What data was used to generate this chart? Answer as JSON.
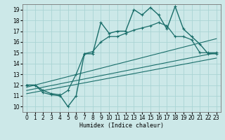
{
  "title": "",
  "xlabel": "Humidex (Indice chaleur)",
  "ylabel": "",
  "xlim": [
    -0.5,
    23.5
  ],
  "ylim": [
    9.5,
    19.5
  ],
  "xticks": [
    0,
    1,
    2,
    3,
    4,
    5,
    6,
    7,
    8,
    9,
    10,
    11,
    12,
    13,
    14,
    15,
    16,
    17,
    18,
    19,
    20,
    21,
    22,
    23
  ],
  "yticks": [
    10,
    11,
    12,
    13,
    14,
    15,
    16,
    17,
    18,
    19
  ],
  "bg_color": "#cce8e8",
  "line_color": "#1a6e6a",
  "grid_color": "#aad4d4",
  "line_main": {
    "x": [
      0,
      1,
      2,
      3,
      4,
      5,
      6,
      7,
      8,
      9,
      10,
      11,
      12,
      13,
      14,
      15,
      16,
      17,
      18,
      19,
      20,
      21,
      22,
      23
    ],
    "y": [
      12,
      12,
      11.5,
      11.2,
      11.1,
      10.0,
      11.0,
      14.9,
      14.9,
      17.8,
      16.8,
      17.0,
      17.0,
      19.0,
      18.5,
      19.2,
      18.5,
      17.2,
      19.3,
      17.2,
      16.5,
      15.8,
      14.9,
      14.9
    ]
  },
  "line_smooth": {
    "x": [
      0,
      1,
      2,
      3,
      4,
      5,
      6,
      7,
      8,
      9,
      10,
      11,
      12,
      13,
      14,
      15,
      16,
      17,
      18,
      19,
      20,
      21,
      22,
      23
    ],
    "y": [
      12,
      12,
      11.3,
      11.1,
      11.0,
      11.5,
      13.0,
      14.9,
      15.1,
      16.0,
      16.5,
      16.5,
      16.8,
      17.1,
      17.3,
      17.5,
      17.8,
      17.5,
      16.5,
      16.5,
      16.2,
      15.0,
      15.0,
      15.0
    ]
  },
  "linear_lines": [
    {
      "x0": 0,
      "y0": 11.8,
      "x1": 23,
      "y1": 16.3
    },
    {
      "x0": 0,
      "y0": 11.5,
      "x1": 23,
      "y1": 15.0
    },
    {
      "x0": 0,
      "y0": 11.2,
      "x1": 23,
      "y1": 14.5
    }
  ]
}
